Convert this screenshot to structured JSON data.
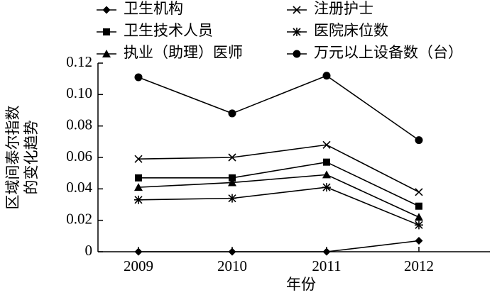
{
  "chart_data": {
    "type": "line",
    "ylabel": [
      "区域间泰尔指数",
      "的变化趋势"
    ],
    "xlabel": "年份",
    "categories": [
      "2009",
      "2010",
      "2011",
      "2012"
    ],
    "series": [
      {
        "name": "卫生机构",
        "color": "#000000",
        "marker": "diamond",
        "values": [
          0,
          0,
          0,
          0.007
        ]
      },
      {
        "name": "注册护士",
        "color": "#000000",
        "marker": "x",
        "values": [
          0.059,
          0.06,
          0.068,
          0.038
        ]
      },
      {
        "name": "卫生技术人员",
        "color": "#000000",
        "marker": "square",
        "values": [
          0.047,
          0.047,
          0.057,
          0.029
        ]
      },
      {
        "name": "医院床位数",
        "color": "#000000",
        "marker": "asterisk",
        "values": [
          0.033,
          0.034,
          0.041,
          0.017
        ]
      },
      {
        "name": "执业（助理）医师",
        "color": "#000000",
        "marker": "triangle",
        "values": [
          0.041,
          0.044,
          0.049,
          0.022
        ]
      },
      {
        "name": "万元以上设备数（台）",
        "color": "#000000",
        "marker": "circle",
        "values": [
          0.111,
          0.088,
          0.112,
          0.071
        ]
      }
    ],
    "ylim": [
      0,
      0.12
    ],
    "yticks": [
      0,
      0.02,
      0.04,
      0.06,
      0.08,
      {
        "value": 0.1,
        "label": "0.10"
      },
      0.12
    ]
  }
}
